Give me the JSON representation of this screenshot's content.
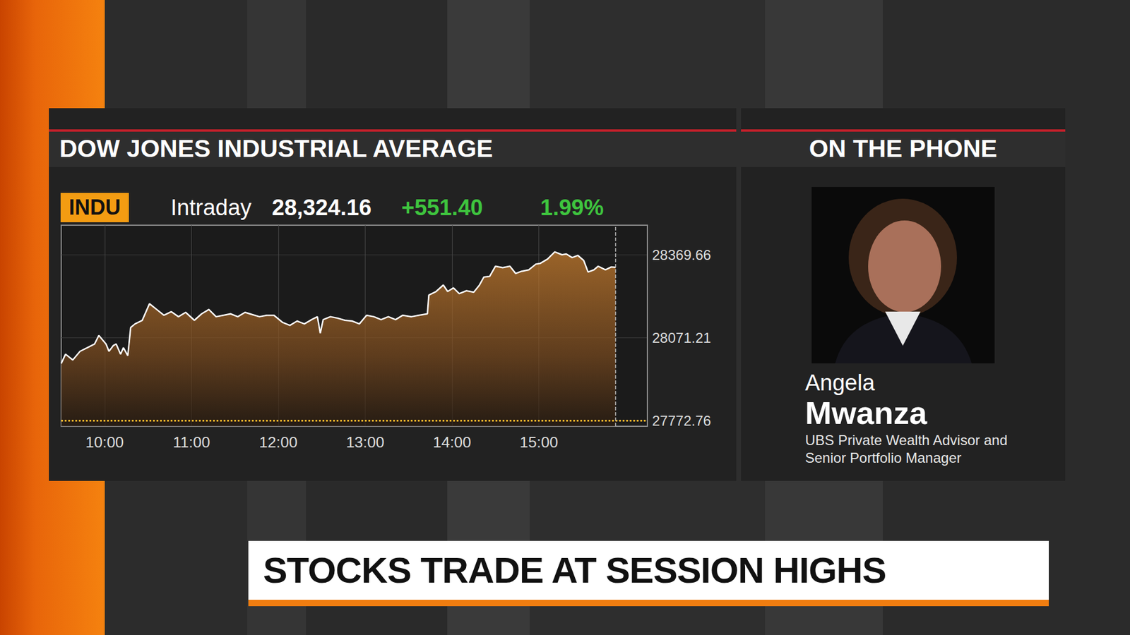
{
  "chart_data": {
    "type": "line",
    "title": "DOW JONES INDUSTRIAL AVERAGE",
    "ticker": "INDU",
    "quote_label": "Intraday",
    "quote": {
      "price": "28,324.16",
      "change": "+551.40",
      "change_percent": "1.99%"
    },
    "color": "#ffffff",
    "x": [
      570,
      573,
      578,
      583,
      588,
      593,
      596,
      601,
      603,
      606,
      608,
      611,
      613,
      616,
      618,
      621,
      626,
      631,
      636,
      641,
      646,
      651,
      656,
      662,
      667,
      672,
      677,
      682,
      687,
      692,
      697,
      702,
      707,
      712,
      717,
      723,
      728,
      733,
      738,
      743,
      747,
      749,
      751,
      756,
      761,
      766,
      771,
      776,
      781,
      786,
      791,
      796,
      801,
      806,
      812,
      817,
      823,
      824,
      829,
      834,
      837,
      841,
      845,
      850,
      855,
      859,
      862,
      866,
      870,
      875,
      880,
      884,
      888,
      893,
      898,
      901,
      906,
      911,
      916,
      919,
      923,
      927,
      931,
      934,
      938,
      941,
      946,
      950,
      953
    ],
    "values": [
      27977.8,
      28011.6,
      27990.8,
      28021.9,
      28034.9,
      28047.9,
      28079.0,
      28047.9,
      28021.9,
      28042.7,
      28047.9,
      28011.6,
      28034.9,
      28006.4,
      28107.6,
      28120.6,
      28133.5,
      28193.2,
      28172.5,
      28151.7,
      28164.7,
      28146.5,
      28162.1,
      28133.5,
      28156.9,
      28172.5,
      28146.5,
      28151.7,
      28156.9,
      28146.5,
      28162.1,
      28154.3,
      28146.5,
      28151.7,
      28151.7,
      28125.8,
      28115.4,
      28130.9,
      28120.6,
      28136.1,
      28146.5,
      28086.8,
      28136.1,
      28146.5,
      28141.3,
      28133.5,
      28130.9,
      28120.6,
      28151.7,
      28146.5,
      28136.1,
      28146.5,
      28136.1,
      28151.7,
      28146.5,
      28151.7,
      28156.9,
      28224.4,
      28237.3,
      28260.7,
      28237.3,
      28250.3,
      28229.6,
      28239.9,
      28234.7,
      28260.7,
      28289.2,
      28291.8,
      28328.2,
      28323.0,
      28328.2,
      28302.2,
      28310.0,
      28315.2,
      28336.0,
      28338.6,
      28354.1,
      28380.0,
      28369.7,
      28372.3,
      28359.3,
      28367.1,
      28348.9,
      28307.4,
      28315.2,
      28328.2,
      28315.2,
      28325.6,
      28324.2
    ],
    "xlim": [
      570,
      975
    ],
    "xticks": [
      {
        "value": 600,
        "label": "10:00"
      },
      {
        "value": 660,
        "label": "11:00"
      },
      {
        "value": 720,
        "label": "12:00"
      },
      {
        "value": 780,
        "label": "13:00"
      },
      {
        "value": 840,
        "label": "14:00"
      },
      {
        "value": 900,
        "label": "15:00"
      }
    ],
    "ylim": [
      27752,
      28476
    ],
    "yticks": [
      27772.76,
      28071.21,
      28369.66
    ],
    "reference_line": 27772.76,
    "grid": true
  },
  "panel": {
    "title": "ON THE PHONE",
    "guest": {
      "first_name": "Angela",
      "last_name": "Mwanza",
      "role": [
        "UBS Private Wealth Advisor and",
        "Senior Portfolio Manager"
      ]
    }
  },
  "headline": "STOCKS TRADE AT SESSION HIGHS"
}
